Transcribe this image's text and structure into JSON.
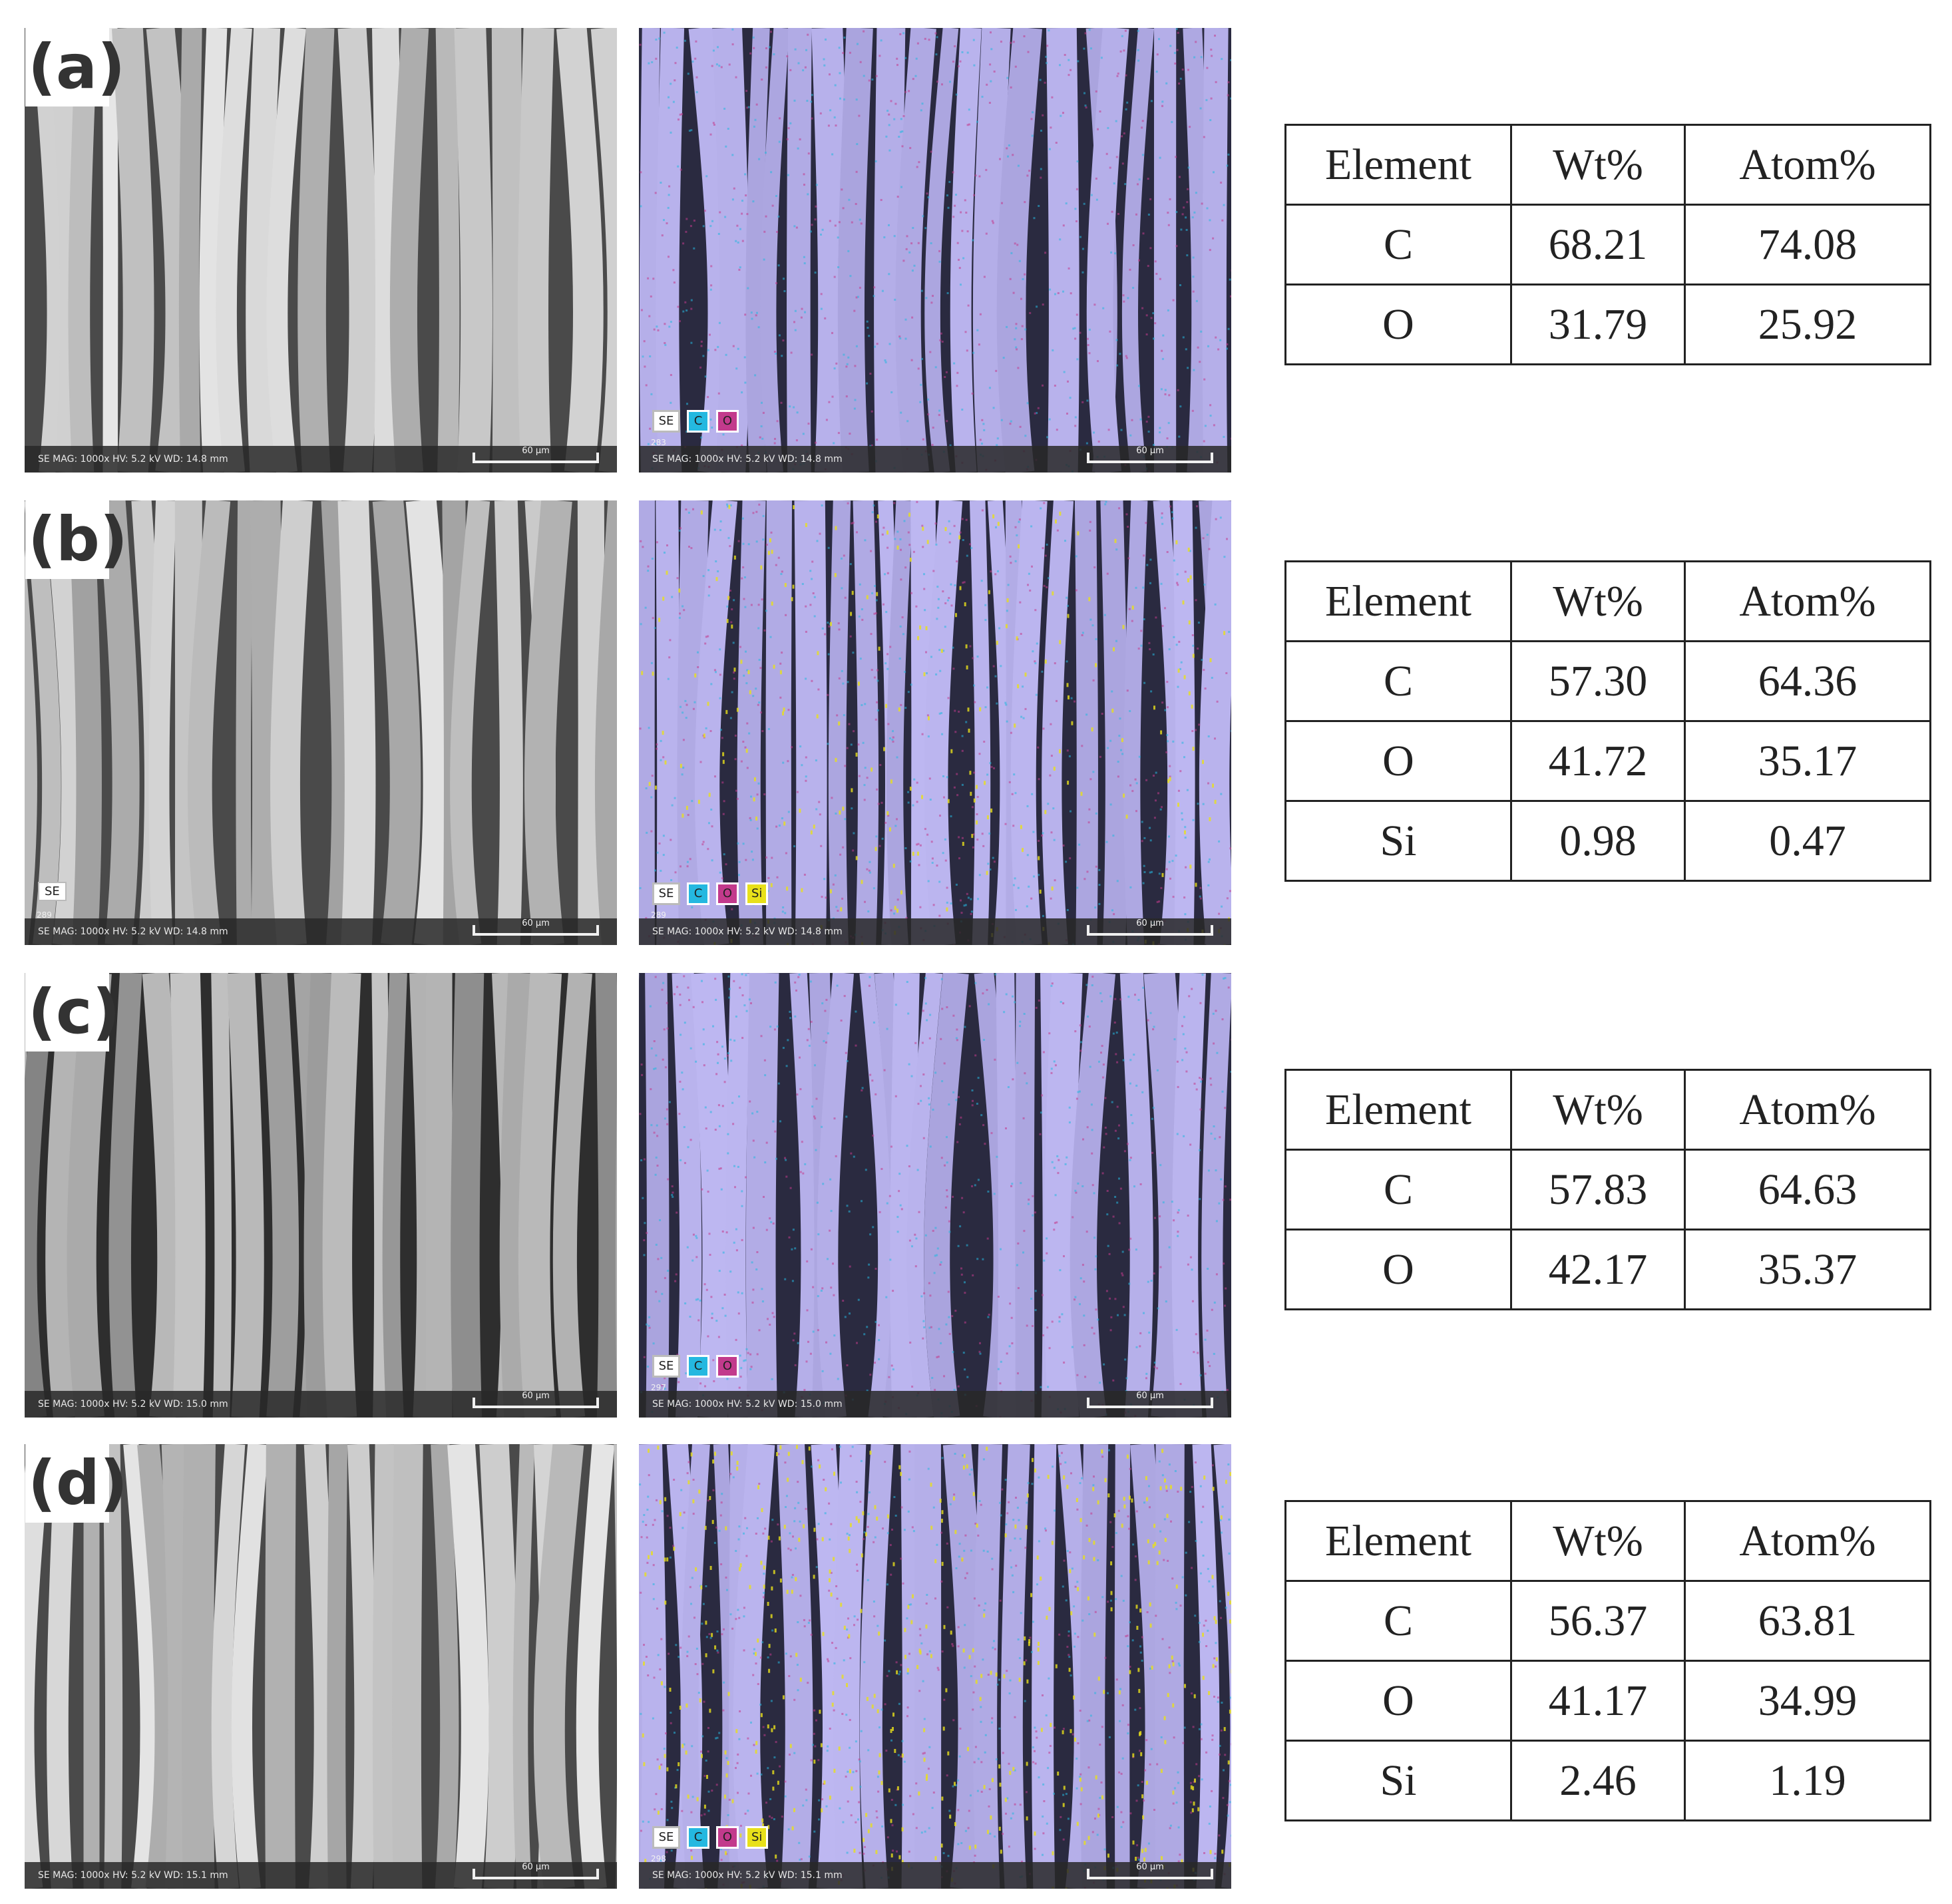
{
  "panels": [
    {
      "label": "(a)",
      "sem_info": "SE   MAG: 1000x   HV: 5.2 kV   WD: 14.8 mm",
      "eds_info": "SE   MAG: 1000x   HV: 5.2 kV   WD: 14.8 mm",
      "eds_frame": "283",
      "scale": "60 µm",
      "legend": [
        "SE",
        "C",
        "O"
      ],
      "table": {
        "header": [
          "Element",
          "Wt%",
          "Atom%"
        ],
        "rows": [
          [
            "C",
            "68.21",
            "74.08"
          ],
          [
            "O",
            "31.79",
            "25.92"
          ]
        ]
      }
    },
    {
      "label": "(b)",
      "sem_info": "SE   MAG: 1000x   HV: 5.2 kV   WD: 14.8 mm",
      "sem_tag": "SE",
      "sem_frame": "289",
      "eds_info": "SE   MAG: 1000x   HV: 5.2 kV   WD: 14.8 mm",
      "eds_frame": "289",
      "scale": "60 µm",
      "legend": [
        "SE",
        "C",
        "O",
        "Si"
      ],
      "table": {
        "header": [
          "Element",
          "Wt%",
          "Atom%"
        ],
        "rows": [
          [
            "C",
            "57.30",
            "64.36"
          ],
          [
            "O",
            "41.72",
            "35.17"
          ],
          [
            "Si",
            "0.98",
            "0.47"
          ]
        ]
      }
    },
    {
      "label": "(c)",
      "sem_info": "SE   MAG: 1000x   HV: 5.2 kV   WD: 15.0 mm",
      "eds_info": "SE   MAG: 1000x   HV: 5.2 kV   WD: 15.0 mm",
      "eds_frame": "297",
      "scale": "60 µm",
      "legend": [
        "SE",
        "C",
        "O"
      ],
      "table": {
        "header": [
          "Element",
          "Wt%",
          "Atom%"
        ],
        "rows": [
          [
            "C",
            "57.83",
            "64.63"
          ],
          [
            "O",
            "42.17",
            "35.37"
          ]
        ]
      }
    },
    {
      "label": "(d)",
      "sem_info": "SE   MAG: 1000x   HV: 5.2 kV   WD: 15.1 mm",
      "eds_info": "SE   MAG: 1000x   HV: 5.2 kV   WD: 15.1 mm",
      "eds_frame": "298",
      "scale": "60 µm",
      "legend": [
        "SE",
        "C",
        "O",
        "Si"
      ],
      "table": {
        "header": [
          "Element",
          "Wt%",
          "Atom%"
        ],
        "rows": [
          [
            "C",
            "56.37",
            "63.81"
          ],
          [
            "O",
            "41.17",
            "34.99"
          ],
          [
            "Si",
            "2.46",
            "1.19"
          ]
        ]
      }
    }
  ],
  "colors": {
    "sem_fiber_light": "#d8d8d8",
    "sem_fiber_dark": "#4a4a4a",
    "eds_fiber": "#b4aee0",
    "eds_gap": "#2a2a40",
    "carbon": "#24b8e0",
    "oxygen": "#c23a8c",
    "silicon": "#e8e01a"
  }
}
